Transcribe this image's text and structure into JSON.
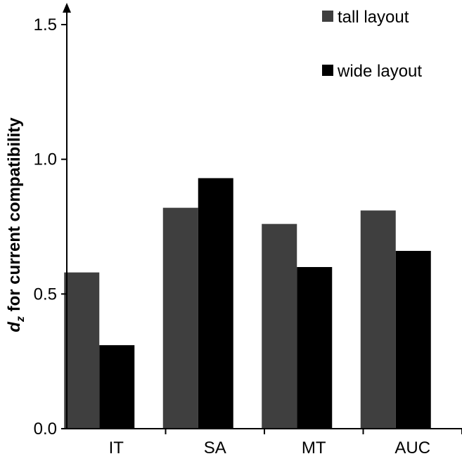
{
  "chart_data": {
    "type": "bar",
    "categories": [
      "IT",
      "SA",
      "MT",
      "AUC"
    ],
    "series": [
      {
        "name": "tall layout",
        "values": [
          0.58,
          0.82,
          0.76,
          0.81
        ],
        "color": "#3f3f3f"
      },
      {
        "name": "wide layout",
        "values": [
          0.31,
          0.93,
          0.6,
          0.66
        ],
        "color": "#000000"
      }
    ],
    "ylabel_prefix": "d",
    "ylabel_subscript": "z",
    "ylabel_rest": " for current compatibility",
    "xlabel": "",
    "ylim": [
      0,
      1.5
    ],
    "yticks": [
      0.0,
      0.5,
      1.0,
      1.5
    ],
    "ytick_labels": [
      "0.0",
      "0.5",
      "1.0",
      "1.5"
    ],
    "grid": false,
    "legend_position": "top-right"
  }
}
